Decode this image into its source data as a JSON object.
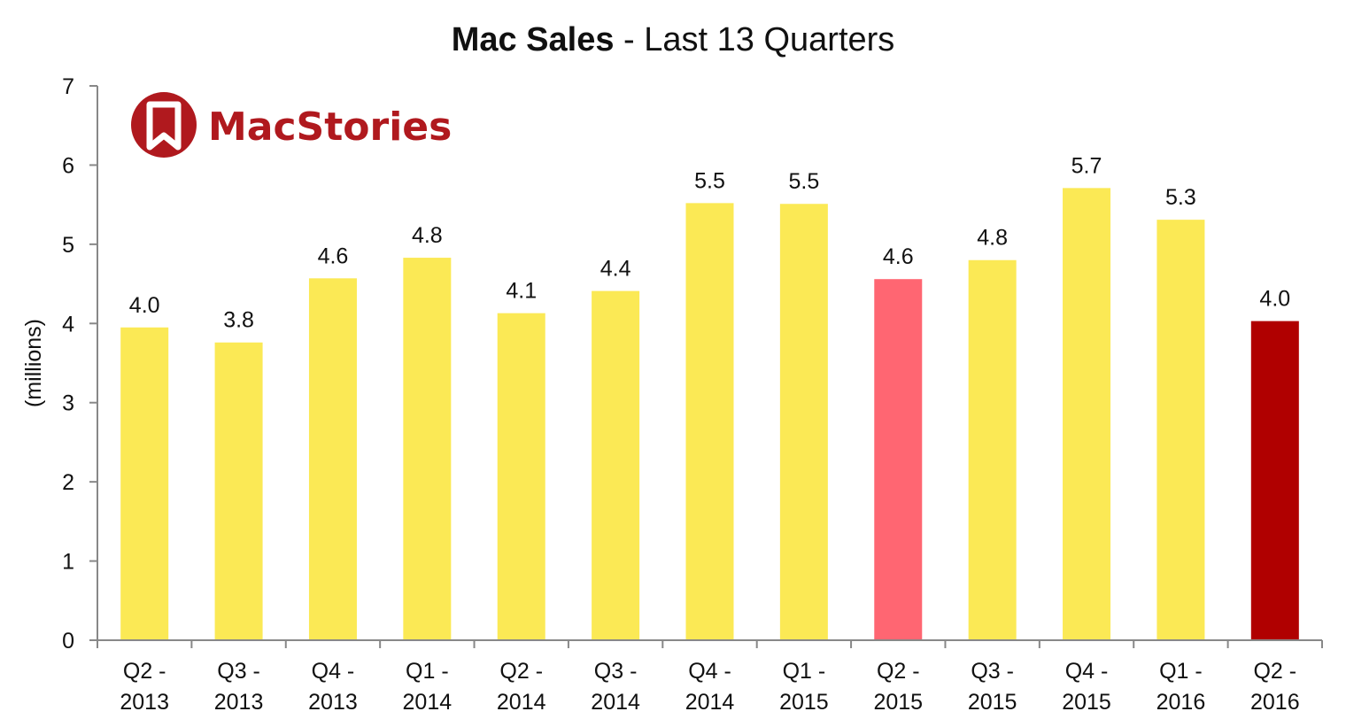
{
  "chart_data": {
    "type": "bar",
    "title_bold": "Mac Sales",
    "title_rest": " - Last 13 Quarters",
    "ylabel": "(millions)",
    "xlabel": "",
    "ylim": [
      0,
      7
    ],
    "yticks": [
      0,
      1,
      2,
      3,
      4,
      5,
      6,
      7
    ],
    "grid": false,
    "legend": "none",
    "categories": [
      [
        "Q2 -",
        "2013"
      ],
      [
        "Q3 -",
        "2013"
      ],
      [
        "Q4 -",
        "2013"
      ],
      [
        "Q1 -",
        "2014"
      ],
      [
        "Q2 -",
        "2014"
      ],
      [
        "Q3 -",
        "2014"
      ],
      [
        "Q4 -",
        "2014"
      ],
      [
        "Q1 -",
        "2015"
      ],
      [
        "Q2 -",
        "2015"
      ],
      [
        "Q3 -",
        "2015"
      ],
      [
        "Q4 -",
        "2015"
      ],
      [
        "Q1 -",
        "2016"
      ],
      [
        "Q2 -",
        "2016"
      ]
    ],
    "values": [
      3.95,
      3.76,
      4.57,
      4.83,
      4.13,
      4.41,
      5.52,
      5.51,
      4.56,
      4.8,
      5.71,
      5.31,
      4.03
    ],
    "value_labels": [
      "4.0",
      "3.8",
      "4.6",
      "4.8",
      "4.1",
      "4.4",
      "5.5",
      "5.5",
      "4.6",
      "4.8",
      "5.7",
      "5.3",
      "4.0"
    ],
    "bar_colors": [
      "#fbe955",
      "#fbe955",
      "#fbe955",
      "#fbe955",
      "#fbe955",
      "#fbe955",
      "#fbe955",
      "#fbe955",
      "#ff6672",
      "#fbe955",
      "#fbe955",
      "#fbe955",
      "#b00000"
    ]
  },
  "brand": {
    "name": "MacStories",
    "color": "#b0191e",
    "icon": "bookmark-logo-icon"
  }
}
